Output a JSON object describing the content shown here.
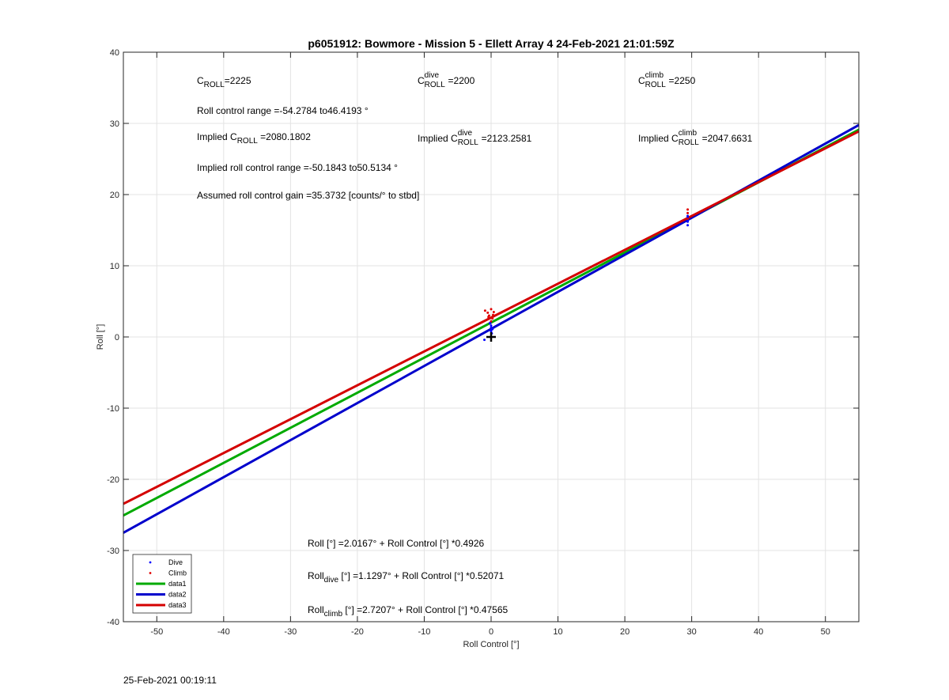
{
  "chart_data": {
    "type": "line",
    "title": "p6051912: Bowmore - Mission 5 - Ellett Array 4 24-Feb-2021 21:01:59Z",
    "xlabel": "Roll Control [°]",
    "ylabel": "Roll [°]",
    "xlim": [
      -55,
      55
    ],
    "ylim": [
      -40,
      40
    ],
    "xticks": [
      -50,
      -40,
      -30,
      -20,
      -10,
      0,
      10,
      20,
      30,
      40,
      50
    ],
    "yticks": [
      -40,
      -30,
      -20,
      -10,
      0,
      10,
      20,
      30,
      40
    ],
    "grid": true,
    "legend_position": "bottom-left",
    "series": [
      {
        "name": "Dive",
        "kind": "markers",
        "color": "#0000ff",
        "points": [
          [
            0.0,
            1.0
          ],
          [
            0.0,
            1.3
          ],
          [
            0.0,
            0.8
          ],
          [
            0.0,
            1.6
          ],
          [
            -0.2,
            1.9
          ],
          [
            0.2,
            1.1
          ],
          [
            -1.0,
            -0.4
          ],
          [
            0.1,
            0.5
          ],
          [
            -0.1,
            2.0
          ],
          [
            29.4,
            16.4
          ],
          [
            29.4,
            16.8
          ],
          [
            29.4,
            15.7
          ],
          [
            29.4,
            17.0
          ],
          [
            29.4,
            16.2
          ]
        ]
      },
      {
        "name": "Climb",
        "kind": "markers",
        "color": "#e00000",
        "points": [
          [
            -0.5,
            3.4
          ],
          [
            0.0,
            3.9
          ],
          [
            -0.4,
            2.8
          ],
          [
            0.3,
            3.1
          ],
          [
            -0.9,
            3.7
          ],
          [
            0.2,
            2.6
          ],
          [
            0.0,
            2.2
          ],
          [
            -0.3,
            3.0
          ],
          [
            0.4,
            3.5
          ],
          [
            29.4,
            17.9
          ],
          [
            29.4,
            17.4
          ],
          [
            29.4,
            16.6
          ]
        ]
      },
      {
        "name": "data1",
        "kind": "line",
        "color": "#00aa00",
        "intercept": 2.0167,
        "slope": 0.4926
      },
      {
        "name": "data2",
        "kind": "line",
        "color": "#0000cc",
        "intercept": 1.1297,
        "slope": 0.52071
      },
      {
        "name": "data3",
        "kind": "line",
        "color": "#d40000",
        "intercept": 2.7207,
        "slope": 0.47565
      }
    ],
    "marker_origin": {
      "x": 0,
      "y": 0,
      "symbol": "+"
    },
    "annotations": {
      "c_roll": {
        "base": "C",
        "sub": "ROLL",
        "value": "=2225"
      },
      "c_roll_dive": {
        "base": "C",
        "sup": "dive",
        "sub": "ROLL",
        "value": " =2200"
      },
      "c_roll_climb": {
        "base": "C",
        "sup": "climb",
        "sub": "ROLL",
        "value": " =2250"
      },
      "roll_range": "Roll control range =-54.2784 to46.4193 °",
      "implied_c_roll": {
        "prefix": "Implied C",
        "sub": "ROLL",
        "value": " =2080.1802"
      },
      "implied_c_roll_dive": {
        "prefix": "Implied C",
        "sup": "dive",
        "sub": "ROLL",
        "value": " =2123.2581"
      },
      "implied_c_roll_climb": {
        "prefix": "Implied C",
        "sup": "climb",
        "sub": "ROLL",
        "value": " =2047.6631"
      },
      "implied_range": "Implied roll control range =-50.1843 to50.5134 °",
      "gain": "Assumed roll control gain =35.3732 [counts/° to stbd]",
      "fit_all": "Roll [°] =2.0167° + Roll Control [°] *0.4926",
      "fit_dive": {
        "prefix": "Roll",
        "sub": "dive",
        "rest": " [°] =1.1297° + Roll Control [°] *0.52071"
      },
      "fit_climb": {
        "prefix": "Roll",
        "sub": "climb",
        "rest": " [°] =2.7207° + Roll Control [°] *0.47565"
      }
    }
  },
  "footer_timestamp": "25-Feb-2021 00:19:11"
}
